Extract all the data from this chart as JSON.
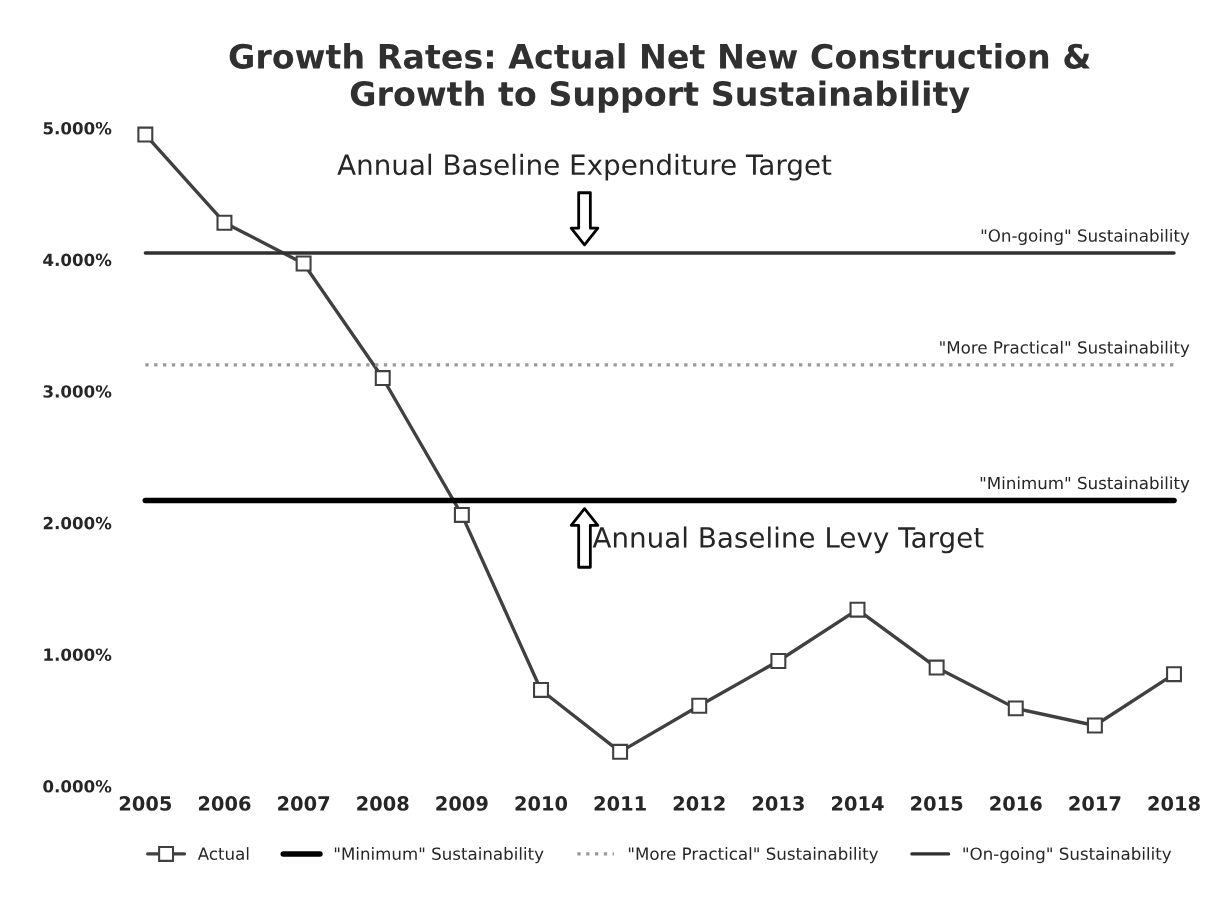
{
  "chart_data": {
    "type": "line",
    "title": "Growth Rates: Actual Net New Construction &\nGrowth to Support Sustainability",
    "categories": [
      "2005",
      "2006",
      "2007",
      "2008",
      "2009",
      "2010",
      "2011",
      "2012",
      "2013",
      "2014",
      "2015",
      "2016",
      "2017",
      "2018"
    ],
    "series": [
      {
        "name": "Actual",
        "color": "#404040",
        "marker": "square",
        "line_style": "solid",
        "values": [
          4.95,
          4.28,
          3.97,
          3.1,
          2.06,
          0.73,
          0.26,
          0.61,
          0.95,
          1.34,
          0.9,
          0.59,
          0.46,
          0.85
        ]
      },
      {
        "name": "\"Minimum\" Sustainability",
        "color": "#000000",
        "marker": "none",
        "line_style": "solid",
        "values": [
          2.17,
          2.17,
          2.17,
          2.17,
          2.17,
          2.17,
          2.17,
          2.17,
          2.17,
          2.17,
          2.17,
          2.17,
          2.17,
          2.17
        ]
      },
      {
        "name": "\"More Practical\" Sustainability",
        "color": "#9a9a9a",
        "marker": "none",
        "line_style": "dotted",
        "values": [
          3.2,
          3.2,
          3.2,
          3.2,
          3.2,
          3.2,
          3.2,
          3.2,
          3.2,
          3.2,
          3.2,
          3.2,
          3.2,
          3.2
        ]
      },
      {
        "name": "\"On-going\" Sustainability",
        "color": "#303030",
        "marker": "none",
        "line_style": "solid",
        "values": [
          4.05,
          4.05,
          4.05,
          4.05,
          4.05,
          4.05,
          4.05,
          4.05,
          4.05,
          4.05,
          4.05,
          4.05,
          4.05,
          4.05
        ]
      }
    ],
    "ylim": [
      0,
      5
    ],
    "yticks": [
      {
        "value": 0,
        "label": "0.000%"
      },
      {
        "value": 1,
        "label": "1.000%"
      },
      {
        "value": 2,
        "label": "2.000%"
      },
      {
        "value": 3,
        "label": "3.000%"
      },
      {
        "value": 4,
        "label": "4.000%"
      },
      {
        "value": 5,
        "label": "5.000%"
      }
    ],
    "grid": false,
    "legend": "bottom",
    "annotations": [
      {
        "text": "Annual Baseline Expenditure Target",
        "x": "2010",
        "y": 4.05
      },
      {
        "text": "Annual Baseline Levy Target",
        "x": "2010",
        "y": 2.17
      },
      {
        "text": "\"On-going\" Sustainability",
        "x": "2017",
        "y": 4.05
      },
      {
        "text": "\"More Practical\" Sustainability",
        "x": "2017",
        "y": 3.2
      },
      {
        "text": "\"Minimum\" Sustainability",
        "x": "2017",
        "y": 2.17
      }
    ]
  }
}
